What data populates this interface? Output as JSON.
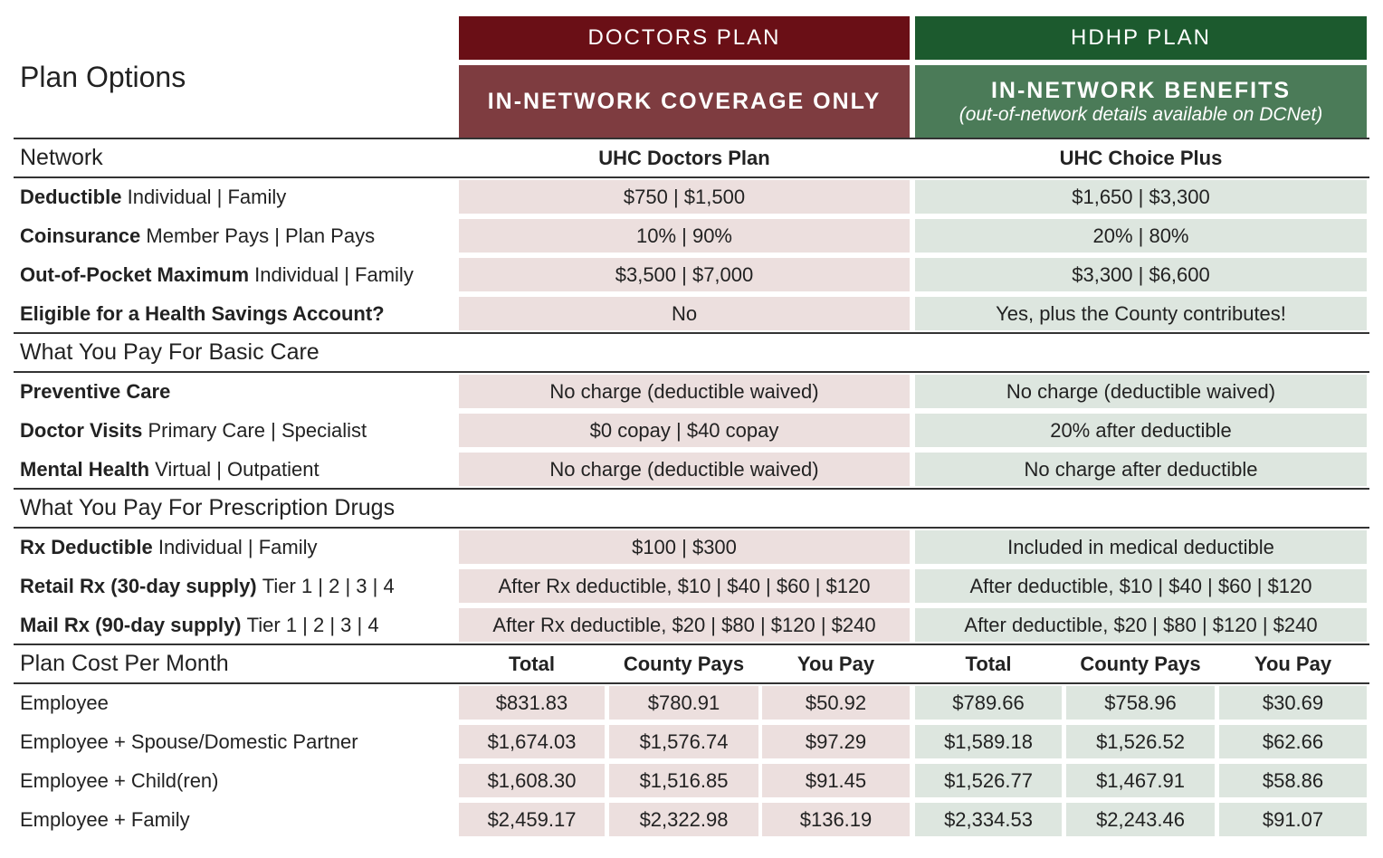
{
  "header": {
    "title": "Plan Options",
    "plans": [
      {
        "name": "DOCTORS PLAN",
        "sub": "IN-NETWORK COVERAGE ONLY"
      },
      {
        "name": "HDHP PLAN",
        "sub": "IN-NETWORK BENEFITS",
        "note": "(out-of-network details available on DCNet)"
      }
    ]
  },
  "sections": [
    {
      "heading": "Network",
      "columns": [
        "UHC Doctors Plan",
        "UHC Choice Plus"
      ],
      "rows": [
        {
          "label_bold": "Deductible",
          "label": "Individual | Family",
          "values": [
            "$750 | $1,500",
            "$1,650 | $3,300"
          ]
        },
        {
          "label_bold": "Coinsurance",
          "label": "Member Pays | Plan Pays",
          "values": [
            "10% | 90%",
            "20% | 80%"
          ]
        },
        {
          "label_bold": "Out-of-Pocket Maximum",
          "label": "Individual | Family",
          "values": [
            "$3,500 | $7,000",
            "$3,300 | $6,600"
          ]
        },
        {
          "label_bold": "Eligible for a Health Savings Account?",
          "values": [
            "No",
            "Yes, plus the County contributes!"
          ]
        }
      ]
    },
    {
      "heading": "What You Pay For Basic Care",
      "rows": [
        {
          "label_bold": "Preventive Care",
          "values": [
            "No charge (deductible waived)",
            "No charge (deductible waived)"
          ]
        },
        {
          "label_bold": "Doctor Visits",
          "label": "Primary Care | Specialist",
          "values": [
            "$0 copay | $40 copay",
            "20% after deductible"
          ]
        },
        {
          "label_bold": "Mental Health",
          "label": "Virtual | Outpatient",
          "values": [
            "No charge (deductible waived)",
            "No charge after deductible"
          ]
        }
      ]
    },
    {
      "heading": "What You Pay For Prescription Drugs",
      "rows": [
        {
          "label_bold": "Rx Deductible",
          "label": "Individual | Family",
          "values": [
            "$100 | $300",
            "Included in medical deductible"
          ]
        },
        {
          "label_bold": "Retail Rx (30-day supply)",
          "label": "Tier 1 | 2 | 3 | 4",
          "values": [
            "After Rx deductible, $10 | $40 | $60 | $120",
            "After deductible, $10 | $40 | $60 | $120"
          ]
        },
        {
          "label_bold": "Mail Rx (90-day supply)",
          "label": "Tier 1 | 2 | 3 | 4",
          "values": [
            "After Rx deductible, $20 | $80 | $120 | $240",
            "After deductible, $20 | $80 | $120 | $240"
          ]
        }
      ]
    },
    {
      "heading": "Plan Cost Per Month",
      "columns": [
        "Total",
        "County Pays",
        "You Pay",
        "Total",
        "County Pays",
        "You Pay"
      ],
      "rows": [
        {
          "label": "Employee",
          "values": [
            "$831.83",
            "$780.91",
            "$50.92",
            "$789.66",
            "$758.96",
            "$30.69"
          ]
        },
        {
          "label": "Employee + Spouse/Domestic Partner",
          "values": [
            "$1,674.03",
            "$1,576.74",
            "$97.29",
            "$1,589.18",
            "$1,526.52",
            "$62.66"
          ]
        },
        {
          "label": "Employee + Child(ren)",
          "values": [
            "$1,608.30",
            "$1,516.85",
            "$91.45",
            "$1,526.77",
            "$1,467.91",
            "$58.86"
          ]
        },
        {
          "label": "Employee + Family",
          "values": [
            "$2,459.17",
            "$2,322.98",
            "$136.19",
            "$2,334.53",
            "$2,243.46",
            "$91.07"
          ]
        }
      ]
    }
  ]
}
